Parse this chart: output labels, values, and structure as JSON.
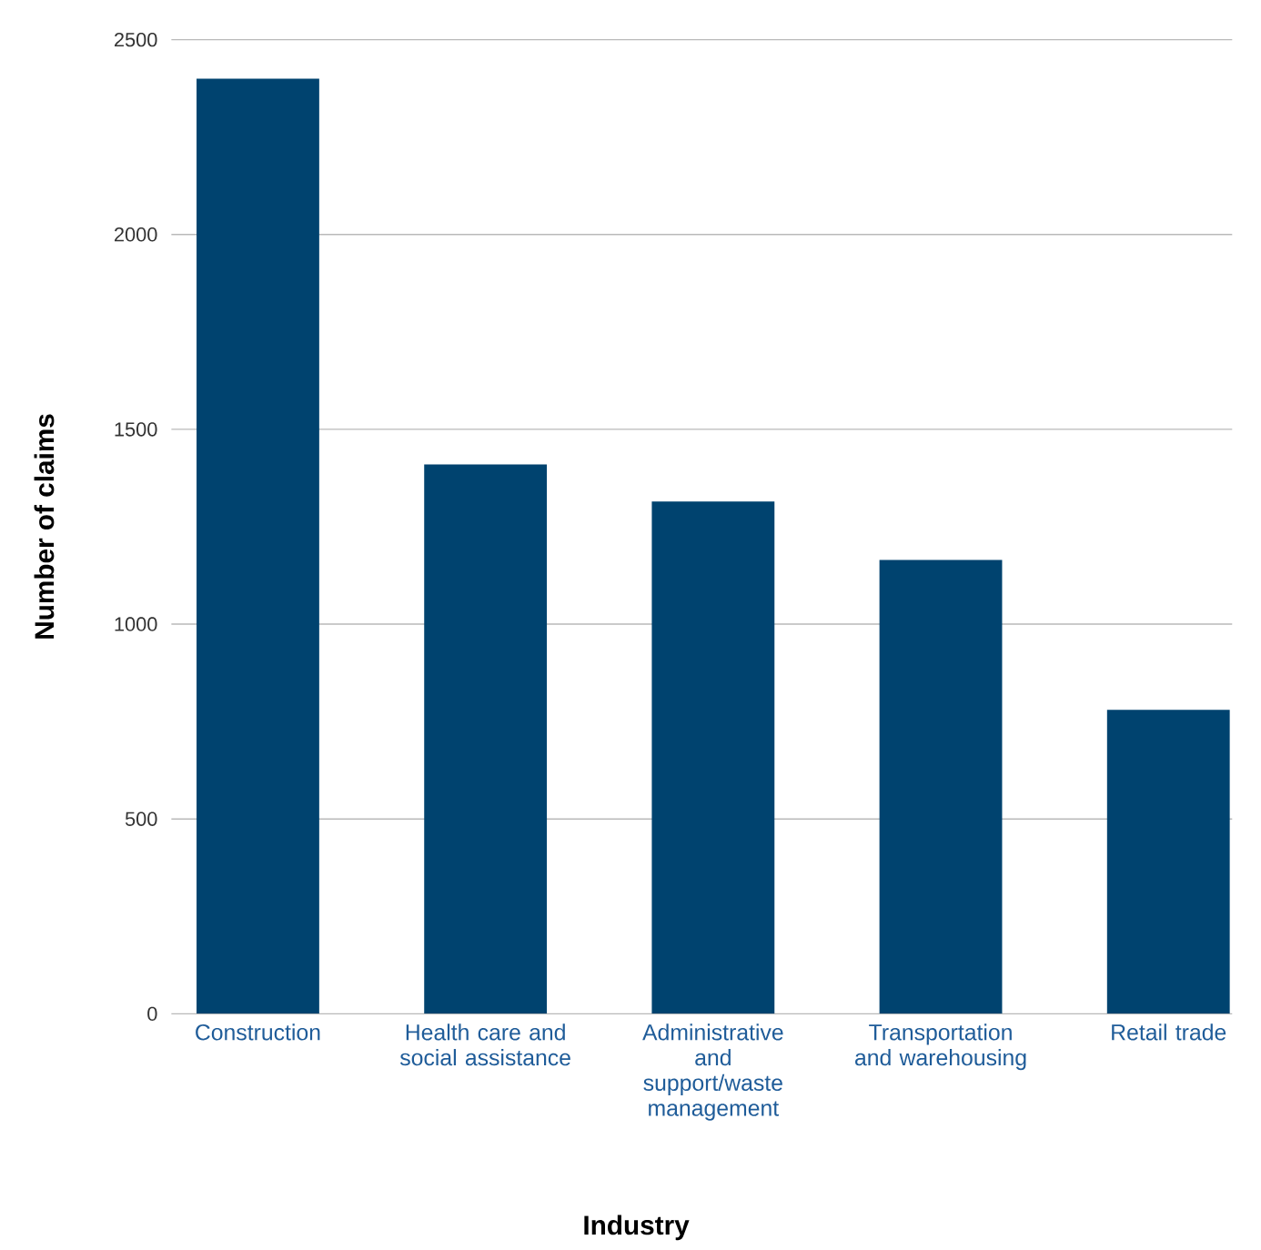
{
  "chart_data": {
    "type": "bar",
    "xlabel": "Industry",
    "ylabel": "Number of claims",
    "categories": [
      "Construction",
      "Health care and social assistance",
      "Administrative and support/waste management",
      "Transportation and warehousing",
      "Retail trade"
    ],
    "values": [
      2400,
      1410,
      1315,
      1165,
      780
    ],
    "color": "#00436f",
    "ylim": [
      0,
      2500
    ],
    "yticks": [
      0,
      500,
      1000,
      1500,
      2000,
      2500
    ],
    "grid": "y"
  }
}
